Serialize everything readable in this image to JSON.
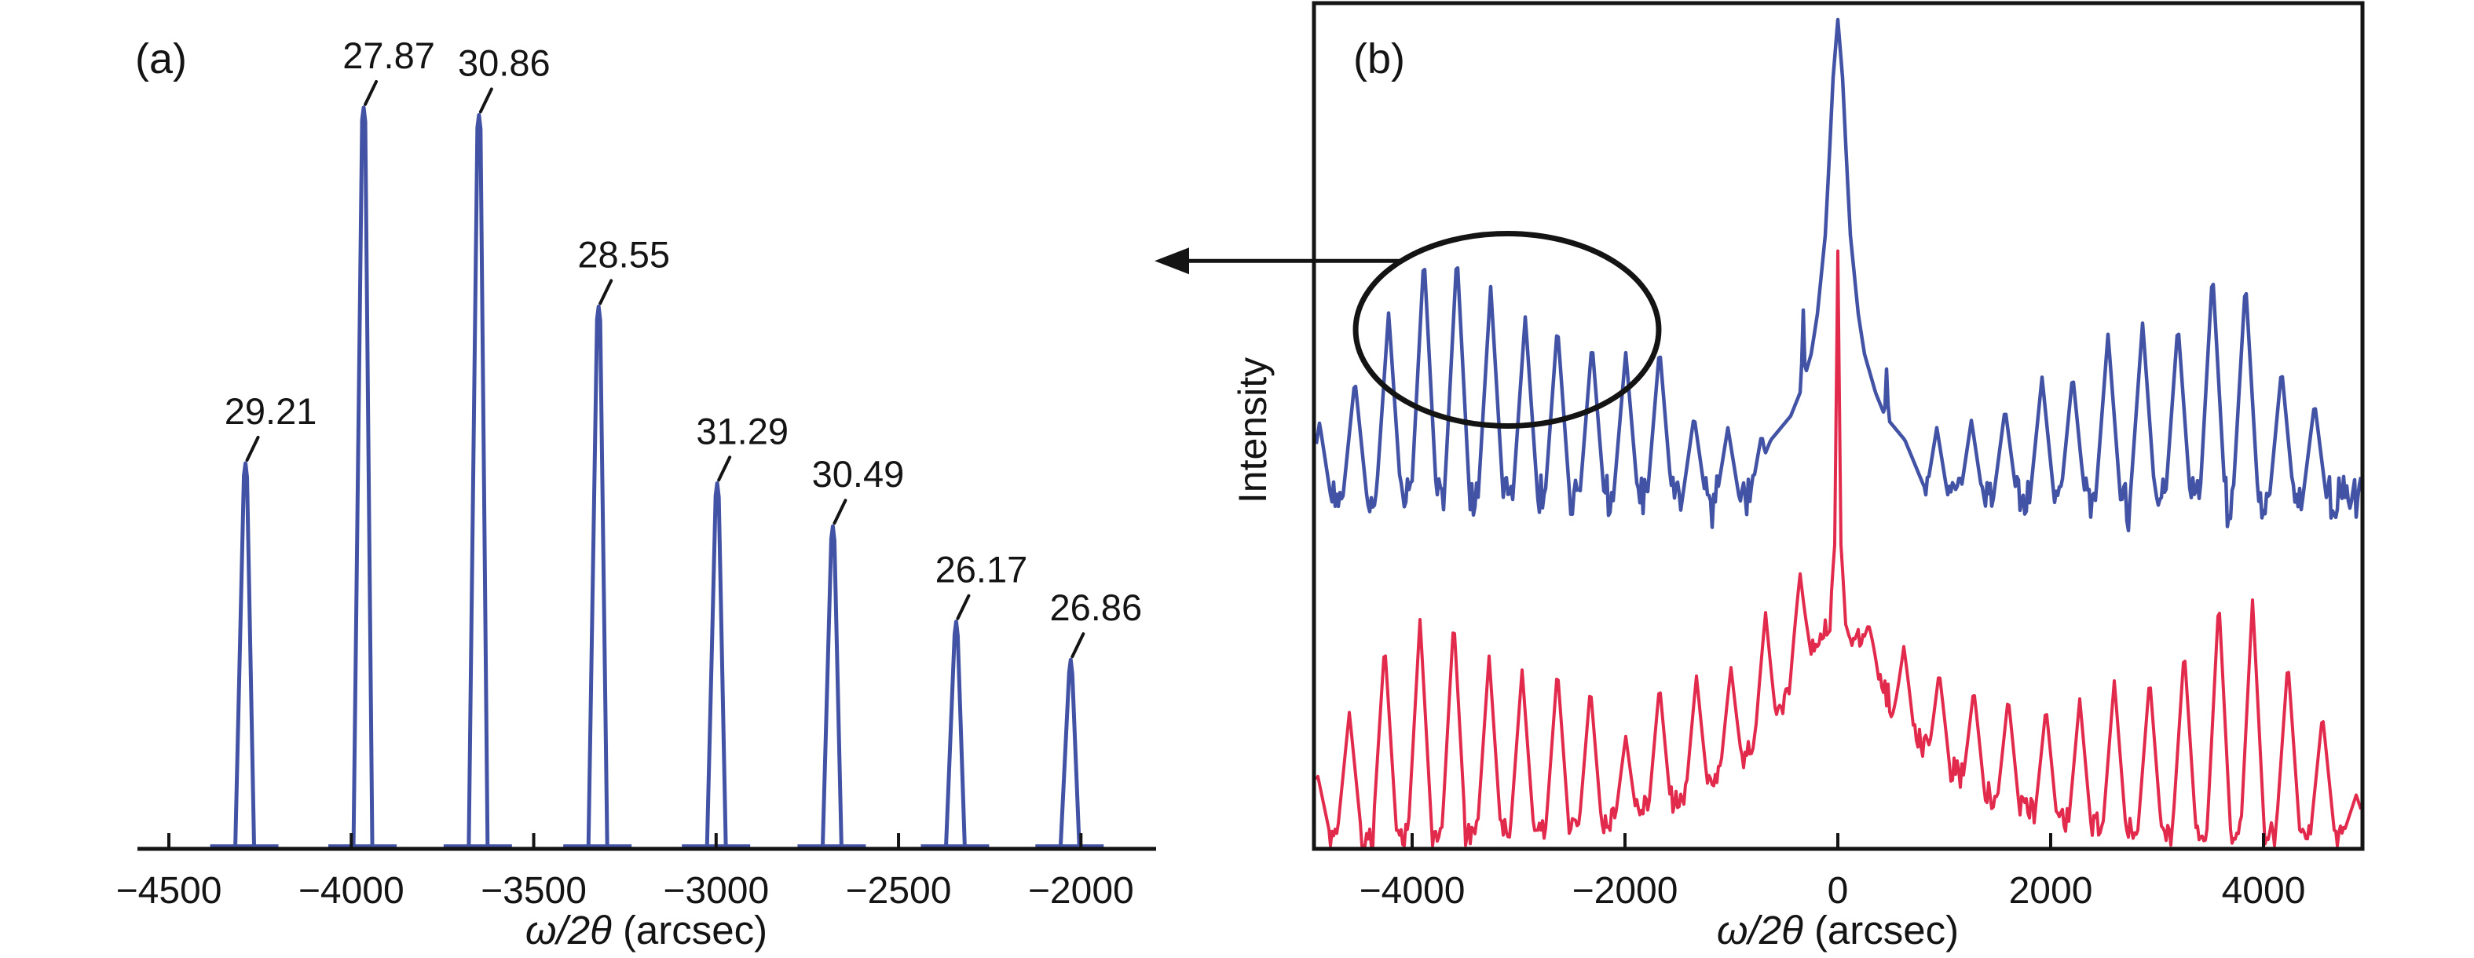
{
  "figure": {
    "panel_a_label": "(a)",
    "panel_b_label": "(b)",
    "x_axis_label": "ω/2θ (arcsec)",
    "x_axis_label_math": "ω/2θ",
    "x_axis_label_units": " (arcsec)",
    "y_axis_label_b": "Intensity",
    "colors": {
      "curve_blue": "#4252a4",
      "curve_red": "#e22a4d",
      "axis_black": "#141414",
      "background": "#ffffff"
    }
  },
  "chart_data": [
    {
      "id": "panel_a",
      "type": "line",
      "title": "",
      "xlabel": "ω/2θ (arcsec)",
      "ylabel": "",
      "xlim": [
        -4586,
        -1793
      ],
      "ylim": [
        0,
        1.05
      ],
      "grid": false,
      "legend": "none",
      "x_ticks": [
        -4500,
        -4000,
        -3500,
        -3000,
        -2500,
        -2000
      ],
      "series_color": "#4252a4",
      "y_units": "arbitrary intensity (unlabeled axis)",
      "annotated_peaks": [
        {
          "x": -4290,
          "intensity": 0.465,
          "label": "29.21"
        },
        {
          "x": -3966,
          "intensity": 0.894,
          "label": "27.87"
        },
        {
          "x": -3650,
          "intensity": 0.885,
          "label": "30.86"
        },
        {
          "x": -3322,
          "intensity": 0.654,
          "label": "28.55"
        },
        {
          "x": -2997,
          "intensity": 0.441,
          "label": "31.29"
        },
        {
          "x": -2680,
          "intensity": 0.389,
          "label": "30.49"
        },
        {
          "x": -2342,
          "intensity": 0.274,
          "label": "26.17"
        },
        {
          "x": -2028,
          "intensity": 0.228,
          "label": "26.86"
        }
      ]
    },
    {
      "id": "panel_b",
      "type": "line",
      "title": "",
      "xlabel": "ω/2θ (arcsec)",
      "ylabel": "Intensity",
      "xlim": [
        -4950,
        4920
      ],
      "ylim": [
        0,
        1.05
      ],
      "grid": false,
      "legend": "none",
      "x_ticks": [
        -4000,
        -2000,
        0,
        2000,
        4000
      ],
      "series": [
        {
          "name": "upper-curve-blue",
          "color": "#4252a4",
          "baseline_intensity": 0.425,
          "noise_amplitude": 0.026,
          "central_peak": {
            "x": 0,
            "intensity": 1.0,
            "profile": [
              [
                0,
                1.0
              ],
              [
                45,
                0.929
              ],
              [
                80,
                0.834
              ],
              [
                118,
                0.74
              ],
              [
                192,
                0.645
              ],
              [
                250,
                0.597
              ],
              [
                355,
                0.55
              ],
              [
                443,
                0.522
              ],
              [
                630,
                0.493
              ],
              [
                810,
                0.437
              ]
            ],
            "sub_spikes": [
              {
                "x": -325,
                "intensity": 0.651
              },
              {
                "x": 458,
                "intensity": 0.58
              }
            ]
          },
          "satellite_peaks": [
            {
              "x": -4870,
              "intensity": 0.514
            },
            {
              "x": -4538,
              "intensity": 0.566
            },
            {
              "x": -4221,
              "intensity": 0.647
            },
            {
              "x": -3889,
              "intensity": 0.716
            },
            {
              "x": -3579,
              "intensity": 0.718
            },
            {
              "x": -3262,
              "intensity": 0.678
            },
            {
              "x": -2937,
              "intensity": 0.642
            },
            {
              "x": -2635,
              "intensity": 0.631
            },
            {
              "x": -2310,
              "intensity": 0.61
            },
            {
              "x": -1993,
              "intensity": 0.599
            },
            {
              "x": -1675,
              "intensity": 0.604
            },
            {
              "x": -1351,
              "intensity": 0.522
            },
            {
              "x": -1033,
              "intensity": 0.508
            },
            {
              "x": -716,
              "intensity": 0.5
            },
            {
              "x": 615,
              "intensity": 0.49
            },
            {
              "x": 930,
              "intensity": 0.508
            },
            {
              "x": 1255,
              "intensity": 0.517
            },
            {
              "x": 1572,
              "intensity": 0.531
            },
            {
              "x": 1919,
              "intensity": 0.569
            },
            {
              "x": 2207,
              "intensity": 0.572
            },
            {
              "x": 2539,
              "intensity": 0.621
            },
            {
              "x": 2864,
              "intensity": 0.635
            },
            {
              "x": 3196,
              "intensity": 0.633
            },
            {
              "x": 3521,
              "intensity": 0.696
            },
            {
              "x": 3831,
              "intensity": 0.684
            },
            {
              "x": 4170,
              "intensity": 0.579
            },
            {
              "x": 4480,
              "intensity": 0.538
            }
          ]
        },
        {
          "name": "lower-curve-red",
          "color": "#e22a4d",
          "baseline_intensity": 0.02,
          "noise_amplitude": 0.028,
          "central_peak": {
            "x": 0,
            "intensity": 0.721,
            "profile": [
              [
                0,
                0.721
              ],
              [
                30,
                0.361
              ],
              [
                74,
                0.285
              ],
              [
                148,
                0.266
              ],
              [
                280,
                0.247
              ],
              [
                553,
                0.171
              ],
              [
                886,
                0.124
              ],
              [
                1400,
                0.077
              ],
              [
                2065,
                0.048
              ],
              [
                3100,
                0.031
              ],
              [
                5170,
                0.02
              ]
            ]
          },
          "satellite_peaks": [
            {
              "x": -4890,
              "intensity": 0.09
            },
            {
              "x": -4590,
              "intensity": 0.165
            },
            {
              "x": -4258,
              "intensity": 0.247
            },
            {
              "x": -3926,
              "intensity": 0.277
            },
            {
              "x": -3609,
              "intensity": 0.277
            },
            {
              "x": -3277,
              "intensity": 0.233
            },
            {
              "x": -2967,
              "intensity": 0.216
            },
            {
              "x": -2635,
              "intensity": 0.217
            },
            {
              "x": -2325,
              "intensity": 0.195
            },
            {
              "x": -1993,
              "intensity": 0.136
            },
            {
              "x": -1675,
              "intensity": 0.198
            },
            {
              "x": -1328,
              "intensity": 0.209
            },
            {
              "x": -1004,
              "intensity": 0.219
            },
            {
              "x": -679,
              "intensity": 0.285
            },
            {
              "x": -354,
              "intensity": 0.332
            },
            {
              "x": 288,
              "intensity": 0.271
            },
            {
              "x": 620,
              "intensity": 0.244
            },
            {
              "x": 952,
              "intensity": 0.214
            },
            {
              "x": 1277,
              "intensity": 0.193
            },
            {
              "x": 1601,
              "intensity": 0.183
            },
            {
              "x": 1956,
              "intensity": 0.171
            },
            {
              "x": 2273,
              "intensity": 0.181
            },
            {
              "x": 2598,
              "intensity": 0.203
            },
            {
              "x": 2930,
              "intensity": 0.206
            },
            {
              "x": 3255,
              "intensity": 0.24
            },
            {
              "x": 3580,
              "intensity": 0.301
            },
            {
              "x": 3897,
              "intensity": 0.301
            },
            {
              "x": 4229,
              "intensity": 0.226
            },
            {
              "x": 4554,
              "intensity": 0.162
            },
            {
              "x": 4871,
              "intensity": 0.065
            }
          ]
        }
      ],
      "annotations": {
        "ellipse": {
          "cx_arcsec": -3107,
          "cy_intensity": 0.626,
          "rx_arcsec": 1424,
          "ry_intensity": 0.116
        },
        "arrow": {
          "direction": "left",
          "points_to": "panel_a",
          "y_intensity": 0.709,
          "x_start_arcsec": -4088
        }
      }
    }
  ]
}
